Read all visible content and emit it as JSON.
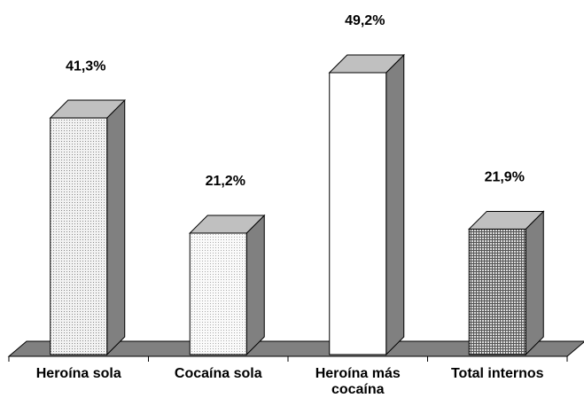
{
  "chart_data": {
    "type": "bar",
    "categories": [
      "Heroína sola",
      "Cocaína sola",
      "Heroína más cocaína",
      "Total internos"
    ],
    "values": [
      41.3,
      21.2,
      49.2,
      21.9
    ],
    "value_labels": [
      "41,3%",
      "21,2%",
      "49,2%",
      "21,9%"
    ]
  }
}
